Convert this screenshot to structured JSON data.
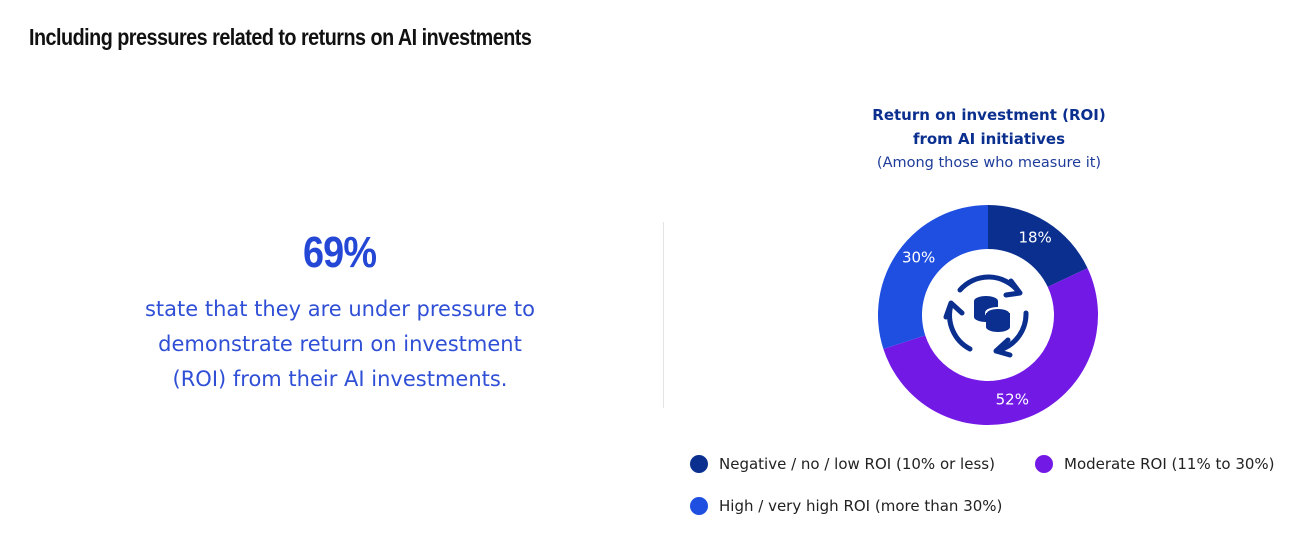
{
  "header": {
    "title": "Including pressures related to returns on AI investments"
  },
  "stat": {
    "value": "69%",
    "description": "state that they are under pressure to demonstrate return on investment (ROI) from their AI investments."
  },
  "chart_data": {
    "type": "pie",
    "donut": true,
    "title": "Return on investment (ROI) from AI initiatives",
    "subtitle": "(Among those who measure it)",
    "center_icon": "coins-cycle-icon",
    "slices": [
      {
        "name": "Negative / no / low ROI (10% or less)",
        "value": 18,
        "label": "18%",
        "color": "#0a2f8f"
      },
      {
        "name": "Moderate ROI (11% to 30%)",
        "value": 52,
        "label": "52%",
        "color": "#7219e6"
      },
      {
        "name": "High / very high ROI (more than 30%)",
        "value": 30,
        "label": "30%",
        "color": "#1f4fe0"
      }
    ],
    "legend_position": "bottom"
  }
}
